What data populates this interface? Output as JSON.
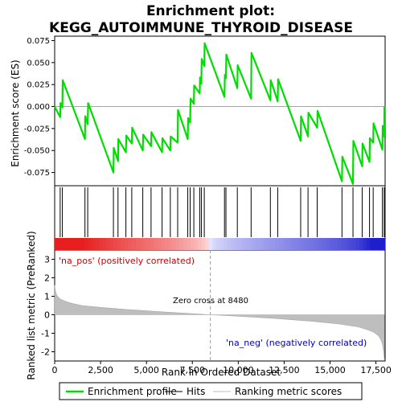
{
  "title_line1": "Enrichment plot:",
  "title_line2": "KEGG_AUTOIMMUNE_THYROID_DISEASE",
  "chart_data": [
    {
      "type": "line",
      "panel": "enrichment",
      "ylabel": "Enrichment score (ES)",
      "ylim": [
        -0.09,
        0.08
      ],
      "xlim": [
        0,
        18000
      ],
      "grid": false,
      "yticks": [
        "0.075",
        "0.050",
        "0.025",
        "0.000",
        "-0.025",
        "-0.050",
        "-0.075"
      ],
      "ytick_values": [
        0.075,
        0.05,
        0.025,
        0.0,
        -0.025,
        -0.05,
        -0.075
      ],
      "series": [
        {
          "name": "Enrichment profile",
          "color": "#00dd00",
          "x": [
            0,
            300,
            320,
            420,
            440,
            1650,
            1660,
            1800,
            1820,
            3200,
            3220,
            3450,
            3470,
            3880,
            3900,
            4200,
            4220,
            4800,
            4820,
            5250,
            5270,
            5850,
            5870,
            6300,
            6320,
            6700,
            6720,
            7250,
            7270,
            7380,
            7400,
            7580,
            7600,
            7900,
            7920,
            7990,
            8010,
            8150,
            8170,
            9250,
            9270,
            9330,
            9350,
            9950,
            9970,
            10700,
            10720,
            11750,
            11770,
            12150,
            12170,
            13400,
            13420,
            13800,
            13820,
            14300,
            14320,
            15650,
            15670,
            16250,
            16270,
            16750,
            16770,
            17150,
            17170,
            17350,
            17370,
            17850,
            17870,
            17950,
            17960
          ],
          "y": [
            0.0,
            -0.012,
            0.004,
            -0.001,
            0.03,
            -0.037,
            -0.011,
            -0.02,
            0.004,
            -0.075,
            -0.047,
            -0.062,
            -0.037,
            -0.052,
            -0.033,
            -0.042,
            -0.024,
            -0.05,
            -0.032,
            -0.045,
            -0.029,
            -0.052,
            -0.036,
            -0.05,
            -0.034,
            -0.041,
            -0.004,
            -0.037,
            -0.013,
            -0.018,
            0.009,
            0.003,
            0.024,
            0.015,
            0.033,
            0.026,
            0.054,
            0.046,
            0.072,
            0.011,
            0.036,
            0.032,
            0.059,
            0.021,
            0.047,
            0.009,
            0.061,
            0.007,
            0.03,
            0.006,
            0.031,
            -0.039,
            -0.011,
            -0.034,
            -0.007,
            -0.024,
            -0.005,
            -0.085,
            -0.057,
            -0.088,
            -0.039,
            -0.068,
            -0.042,
            -0.063,
            -0.036,
            -0.041,
            -0.019,
            -0.049,
            -0.022,
            -0.034,
            0.0
          ]
        }
      ]
    },
    {
      "type": "scatter",
      "panel": "hits",
      "name": "Hits",
      "xlim": [
        0,
        18000
      ],
      "x": [
        300,
        420,
        1650,
        1800,
        3200,
        3450,
        3880,
        4200,
        4800,
        5250,
        5850,
        6300,
        6700,
        7250,
        7380,
        7580,
        7900,
        7990,
        8150,
        9250,
        9330,
        9950,
        10700,
        11750,
        12150,
        13400,
        13800,
        14300,
        15650,
        16250,
        16750,
        17150,
        17350,
        17850,
        17950
      ]
    },
    {
      "type": "area",
      "panel": "ranked-list",
      "name": "Ranking metric scores",
      "ylabel": "Ranked list metric (PreRanked)",
      "xlabel": "Rank in Ordered Dataset",
      "xlim": [
        0,
        18000
      ],
      "ylim": [
        -2.5,
        3.5
      ],
      "grid": false,
      "xticks": [
        "0",
        "2,500",
        "5,000",
        "7,500",
        "10,000",
        "12,500",
        "15,000",
        "17,500"
      ],
      "xtick_values": [
        0,
        2500,
        5000,
        7500,
        10000,
        12500,
        15000,
        17500
      ],
      "yticks": [
        "3",
        "2",
        "1",
        "0",
        "-1",
        "-2"
      ],
      "ytick_values": [
        3,
        2,
        1,
        0,
        -1,
        -2
      ],
      "x": [
        0,
        30,
        80,
        150,
        300,
        600,
        1000,
        1500,
        2500,
        4000,
        6000,
        8480,
        10000,
        12000,
        14000,
        15500,
        16500,
        17000,
        17400,
        17650,
        17800,
        17880,
        17930,
        17960
      ],
      "y": [
        1.6,
        1.35,
        1.15,
        1.0,
        0.85,
        0.72,
        0.6,
        0.5,
        0.4,
        0.28,
        0.15,
        0.0,
        -0.08,
        -0.2,
        -0.35,
        -0.5,
        -0.65,
        -0.8,
        -0.95,
        -1.15,
        -1.4,
        -1.7,
        -2.1,
        -2.4
      ],
      "color": "#bebebe",
      "annotations": [
        "'na_pos' (positively correlated)",
        "Zero cross at 8480",
        "'na_neg' (negatively correlated)"
      ],
      "zero_cross": 8480
    }
  ],
  "legend": {
    "items": [
      {
        "label": "Enrichment profile",
        "color": "#00dd00"
      },
      {
        "label": "Hits",
        "color": "#000000"
      },
      {
        "label": "Ranking metric scores",
        "color": "#bebebe"
      }
    ]
  },
  "colors": {
    "pos_label": "#cc0000",
    "neg_label": "#0000cc",
    "frame": "#000000"
  }
}
